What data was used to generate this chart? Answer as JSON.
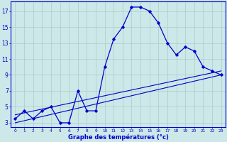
{
  "hours": [
    0,
    1,
    2,
    3,
    4,
    5,
    6,
    7,
    8,
    9,
    10,
    11,
    12,
    13,
    14,
    15,
    16,
    17,
    18,
    19,
    20,
    21,
    22,
    23
  ],
  "temp": [
    3.5,
    4.5,
    3.5,
    4.5,
    5.0,
    3.0,
    3.0,
    7.0,
    4.5,
    4.5,
    10.0,
    13.5,
    15.0,
    17.5,
    17.5,
    17.0,
    15.5,
    13.0,
    11.5,
    12.5,
    12.0,
    10.0,
    9.5,
    9.0
  ],
  "line_color": "#0000cc",
  "bg_color": "#cce8e8",
  "grid_color": "#aacccc",
  "xlabel": "Graphe des températures (°c)",
  "ylabel_ticks": [
    3,
    5,
    7,
    9,
    11,
    13,
    15,
    17
  ],
  "xticks": [
    0,
    1,
    2,
    3,
    4,
    5,
    6,
    7,
    8,
    9,
    10,
    11,
    12,
    13,
    14,
    15,
    16,
    17,
    18,
    19,
    20,
    21,
    22,
    23
  ],
  "xlim": [
    -0.5,
    23.5
  ],
  "ylim": [
    2.5,
    18.2
  ],
  "figsize": [
    3.2,
    2.0
  ],
  "dpi": 100,
  "reg_line1_x": [
    0,
    23
  ],
  "reg_line1_y": [
    3.0,
    9.0
  ],
  "reg_line2_x": [
    0,
    23
  ],
  "reg_line2_y": [
    4.0,
    9.5
  ]
}
